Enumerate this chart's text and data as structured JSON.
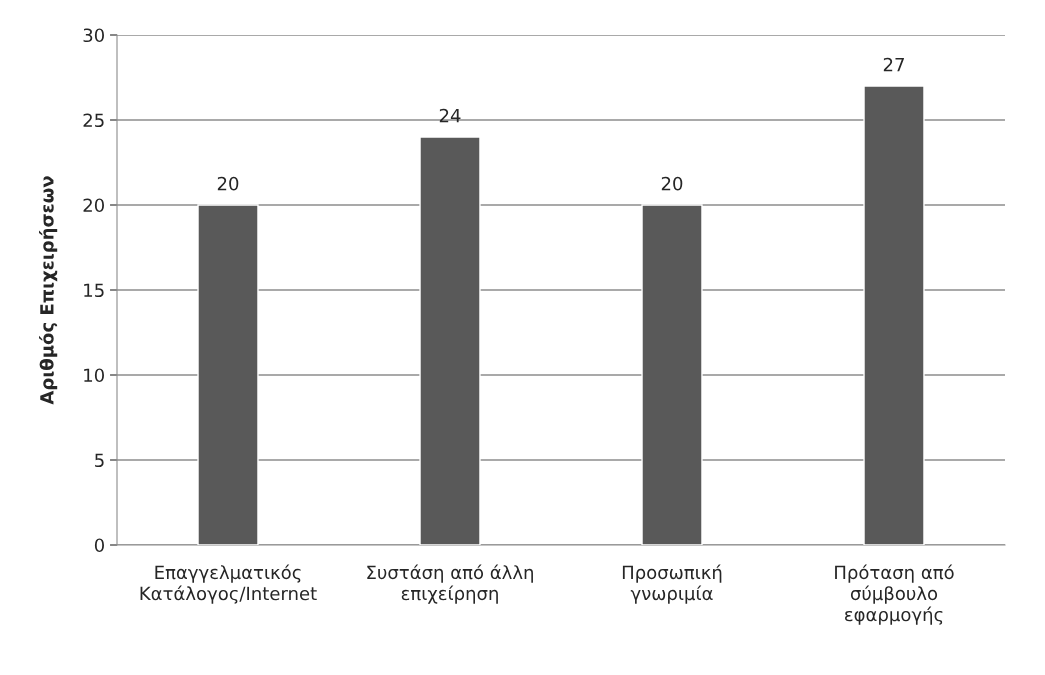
{
  "chart_data": {
    "type": "bar",
    "ylabel": "Αριθμός Επιχειρήσεων",
    "categories": [
      "Επαγγελματικός\nΚατάλογος/Internet",
      "Συστάση από άλλη\nεπιχείρηση",
      "Προσωπική\nγνωριμία",
      "Πρόταση από\nσύμβουλο\nεφαρμογής"
    ],
    "values": [
      20,
      24,
      20,
      27
    ],
    "color": "#595959",
    "ylim": [
      0,
      30
    ],
    "yticks": [
      0,
      5,
      10,
      15,
      20,
      25,
      30
    ],
    "grid": "y",
    "data_labels": true
  }
}
